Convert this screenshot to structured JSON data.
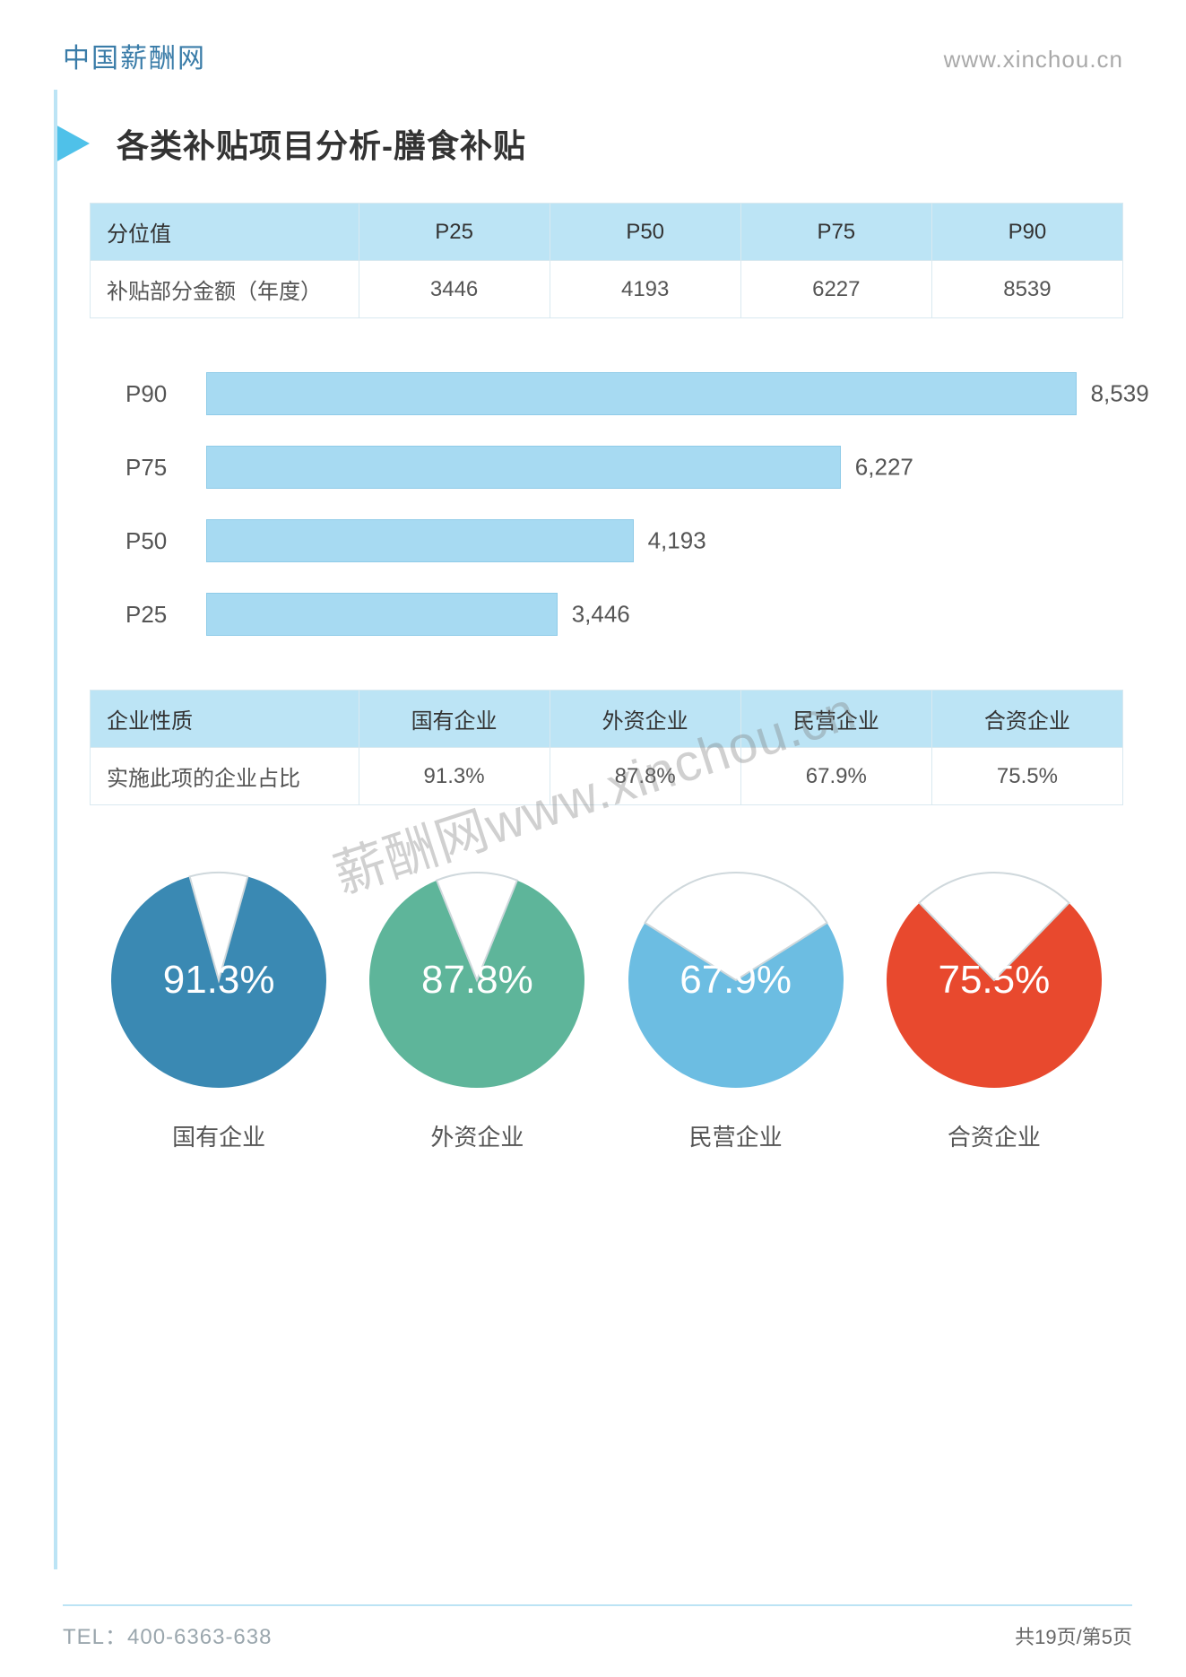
{
  "header": {
    "site_name": "中国薪酬网",
    "site_url": "www.xinchou.cn"
  },
  "title": "各类补贴项目分析-膳食补贴",
  "watermark": "薪酬网www.xinchou.cn",
  "percentile_table": {
    "header_label": "分位值",
    "row_label": "补贴部分金额（年度）",
    "columns": [
      "P25",
      "P50",
      "P75",
      "P90"
    ],
    "values": [
      "3446",
      "4193",
      "6227",
      "8539"
    ]
  },
  "hbar_chart": {
    "type": "bar-horizontal",
    "xmax": 9000,
    "bar_color": "#a7daf2",
    "bar_border": "#8fcbe8",
    "label_color": "#555555",
    "label_fontsize": 26,
    "value_fontsize": 26,
    "bars": [
      {
        "label": "P90",
        "value": 8539,
        "display": "8,539"
      },
      {
        "label": "P75",
        "value": 6227,
        "display": "6,227"
      },
      {
        "label": "P50",
        "value": 4193,
        "display": "4,193"
      },
      {
        "label": "P25",
        "value": 3446,
        "display": "3,446"
      }
    ]
  },
  "enterprise_table": {
    "header_label": "企业性质",
    "row_label": "实施此项的企业占比",
    "columns": [
      "国有企业",
      "外资企业",
      "民营企业",
      "合资企业"
    ],
    "values": [
      "91.3%",
      "87.8%",
      "67.9%",
      "75.5%"
    ]
  },
  "donuts": {
    "type": "radial-percentage",
    "text_color": "#ffffff",
    "pct_fontsize": 44,
    "label_fontsize": 26,
    "ring_bg": "#ffffff",
    "ring_border": "#cfd8dc",
    "items": [
      {
        "label": "国有企业",
        "pct": 91.3,
        "display": "91.3%",
        "color": "#3a89b3"
      },
      {
        "label": "外资企业",
        "pct": 87.8,
        "display": "87.8%",
        "color": "#5eb59a"
      },
      {
        "label": "民营企业",
        "pct": 67.9,
        "display": "67.9%",
        "color": "#6cbde2"
      },
      {
        "label": "合资企业",
        "pct": 75.5,
        "display": "75.5%",
        "color": "#e8492e"
      }
    ]
  },
  "footer": {
    "tel": "TEL：400-6363-638",
    "page": "共19页/第5页"
  },
  "colors": {
    "accent_light": "#bce4f5",
    "accent_tri": "#4fc1e9",
    "header_text": "#3a7ca8",
    "muted": "#a9a9a9"
  }
}
